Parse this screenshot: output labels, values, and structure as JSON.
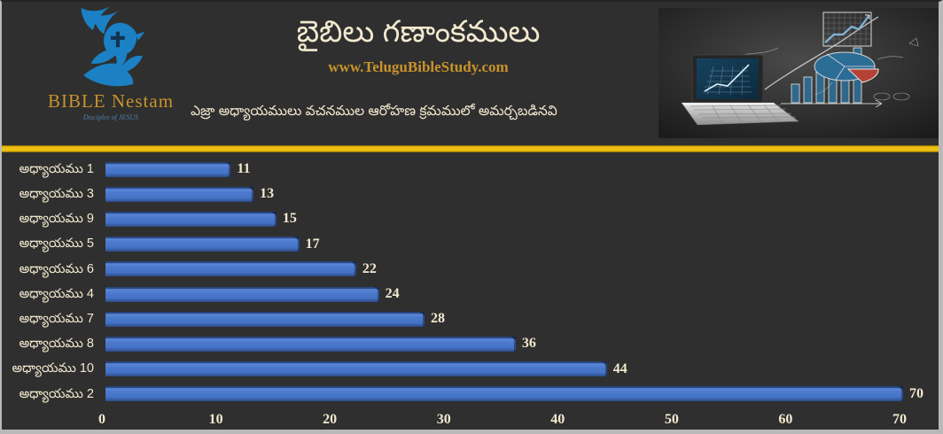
{
  "slide": {
    "background": "#2F2F2F",
    "frame_border_color": "#B9B9B9"
  },
  "header": {
    "logo": {
      "brand": "BIBLE Nestam",
      "tagline": "Disciples of JESUS",
      "dove_color": "#1B80C4",
      "brand_color": "#C8932B"
    },
    "title": "బైబిలు గణాంకములు",
    "website": "www.TeluguBibleStudy.com",
    "subtitle": "ఎజ్రా అధ్యాయములు వచనముల ఆరోహణ క్రమములో అమర్చబడినవి",
    "title_color": "#F2E9CF",
    "website_color": "#C9A227",
    "photo_icon": "laptop-with-sketched-charts-photo"
  },
  "divider_color": "#EEC011",
  "chart_data": {
    "type": "bar",
    "orientation": "horizontal",
    "title": "బైబిలు గణాంకములు",
    "subtitle": "ఎజ్రా అధ్యాయములు వచనముల ఆరోహణ క్రమములో అమర్చబడినవి",
    "categories": [
      "అధ్యాయము 1",
      "అధ్యాయము 3",
      "అధ్యాయము 9",
      "అధ్యాయము 5",
      "అధ్యాయము 6",
      "అధ్యాయము 4",
      "అధ్యాయము 7",
      "అధ్యాయము 8",
      "అధ్యాయము 10",
      "అధ్యాయము 2"
    ],
    "values": [
      11,
      13,
      15,
      17,
      22,
      24,
      28,
      36,
      44,
      70
    ],
    "x_ticks": [
      0,
      10,
      20,
      30,
      40,
      50,
      60,
      70
    ],
    "xlim": [
      0,
      71
    ],
    "bar_color": "#4472C4",
    "label_color": "#F2E9CF",
    "grid": false,
    "legend": false
  }
}
